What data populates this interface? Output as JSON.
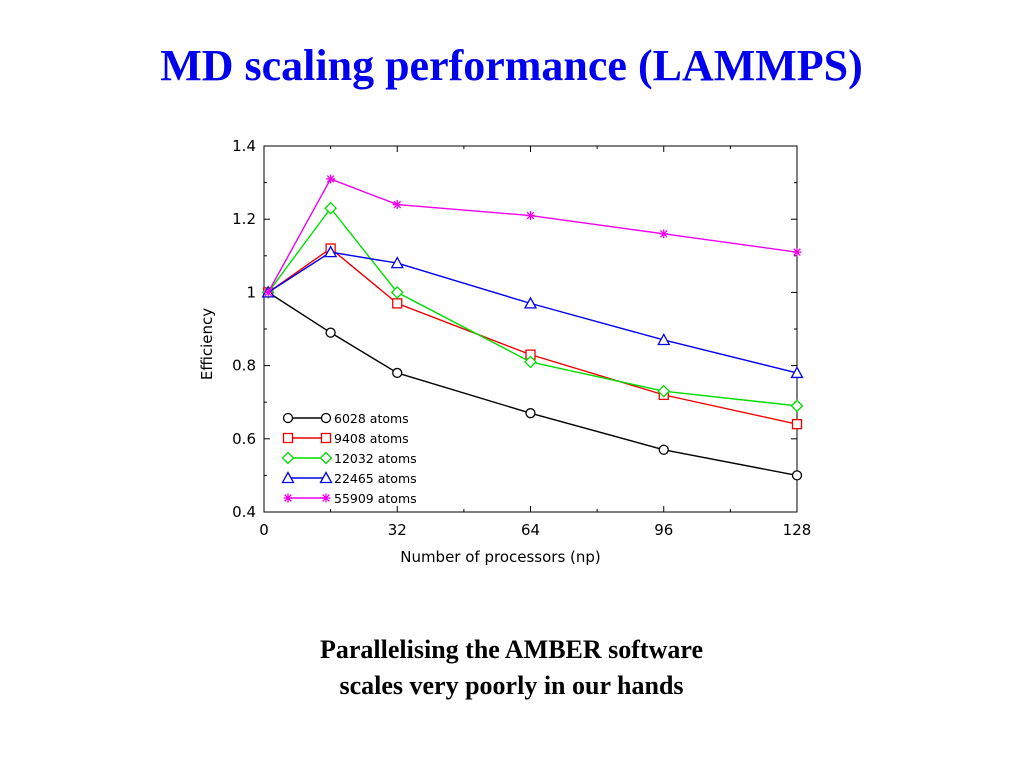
{
  "slide": {
    "title": "MD scaling performance (LAMMPS)",
    "caption_line1": "Parallelising the AMBER software",
    "caption_line2": "scales very poorly in our hands"
  },
  "chart_data": {
    "type": "line",
    "xlabel": "Number of processors (np)",
    "ylabel": "Efficiency",
    "xlim": [
      0,
      128
    ],
    "ylim": [
      0.4,
      1.4
    ],
    "xticks": [
      0,
      32,
      64,
      96,
      128
    ],
    "yticks": [
      0.4,
      0.6,
      0.8,
      1.0,
      1.2,
      1.4
    ],
    "ytick_labels": [
      "0.4",
      "0.6",
      "0.8",
      "1",
      "1.2",
      "1.4"
    ],
    "xtick_labels": [
      "0",
      "32",
      "64",
      "96",
      "128"
    ],
    "grid": false,
    "legend_position": "bottom-left",
    "series": [
      {
        "name": "6028 atoms",
        "color": "#000000",
        "marker": "circle",
        "x": [
          1,
          16,
          32,
          64,
          96,
          128
        ],
        "y": [
          1.0,
          0.89,
          0.78,
          0.67,
          0.57,
          0.5
        ]
      },
      {
        "name": "9408 atoms",
        "color": "#ee0000",
        "marker": "square",
        "x": [
          1,
          16,
          32,
          64,
          96,
          128
        ],
        "y": [
          1.0,
          1.12,
          0.97,
          0.83,
          0.72,
          0.64
        ]
      },
      {
        "name": "12032 atoms",
        "color": "#00dd00",
        "marker": "diamond",
        "x": [
          1,
          16,
          32,
          64,
          96,
          128
        ],
        "y": [
          1.0,
          1.23,
          1.0,
          0.81,
          0.73,
          0.69
        ]
      },
      {
        "name": "22465 atoms",
        "color": "#0000ee",
        "marker": "triangle",
        "x": [
          1,
          16,
          32,
          64,
          96,
          128
        ],
        "y": [
          1.0,
          1.11,
          1.08,
          0.97,
          0.87,
          0.78
        ]
      },
      {
        "name": "55909 atoms",
        "color": "#ee00ee",
        "marker": "star",
        "x": [
          1,
          16,
          32,
          64,
          96,
          128
        ],
        "y": [
          1.0,
          1.31,
          1.24,
          1.21,
          1.16,
          1.11
        ]
      }
    ]
  }
}
